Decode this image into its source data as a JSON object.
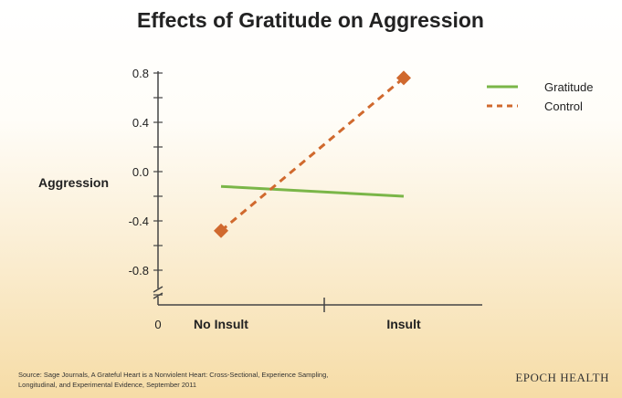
{
  "chart_data": {
    "type": "line",
    "title": "Effects of Gratitude on Aggression",
    "ylabel": "Aggression",
    "xlabel": "",
    "categories": [
      "No Insult",
      "Insult"
    ],
    "x_origin_label": "0",
    "yticks": [
      0.8,
      0.4,
      0.0,
      -0.4,
      -0.8
    ],
    "ytick_labels": [
      "0.8",
      "0.4",
      "0.0",
      "-0.4",
      "-0.8"
    ],
    "ylim": [
      -1.0,
      0.8
    ],
    "grid": false,
    "legend_position": "top-right",
    "series": [
      {
        "name": "Gratitude",
        "values": [
          -0.12,
          -0.2
        ],
        "color": "#7ab648",
        "style": "solid",
        "marker": "none"
      },
      {
        "name": "Control",
        "values": [
          -0.48,
          0.76
        ],
        "color": "#d0692e",
        "style": "dashed",
        "marker": "diamond"
      }
    ]
  },
  "footer": {
    "source_line1": "Source: Sage Journals, A Grateful Heart is a Nonviolent Heart: Cross-Sectional, Experience Sampling,",
    "source_line2": "Longitudinal, and Experimental Evidence, September 2011",
    "brand": "EPOCH HEALTH"
  }
}
